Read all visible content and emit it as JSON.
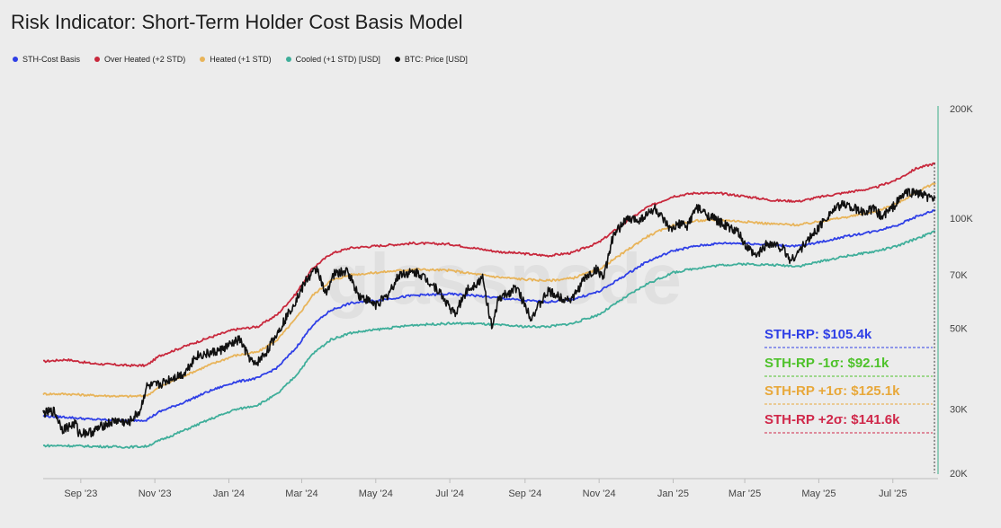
{
  "title": "Risk Indicator: Short-Term Holder Cost Basis Model",
  "watermark": "glassnode",
  "legend": [
    {
      "label": "STH-Cost Basis",
      "color": "#2f3fe6"
    },
    {
      "label": "Over Heated (+2 STD)",
      "color": "#c8283c"
    },
    {
      "label": "Heated (+1 STD)",
      "color": "#e8b45a"
    },
    {
      "label": "Cooled (+1 STD) [USD]",
      "color": "#3fae9a"
    },
    {
      "label": "BTC: Price [USD]",
      "color": "#111111"
    }
  ],
  "annotations": [
    {
      "text": "STH-RP: $105.4k",
      "color": "#2f3fe6"
    },
    {
      "text": "STH-RP -1σ: $92.1k",
      "color": "#4ec22a"
    },
    {
      "text": "STH-RP +1σ: $125.1k",
      "color": "#e8a83a"
    },
    {
      "text": "STH-RP +2σ: $141.6k",
      "color": "#d0284a"
    }
  ],
  "chart_data": {
    "type": "line",
    "title": "Risk Indicator: Short-Term Holder Cost Basis Model",
    "y_scale": "log",
    "ylim": [
      20000,
      200000
    ],
    "y_ticks": [
      {
        "value": 20000,
        "label": "20K"
      },
      {
        "value": 30000,
        "label": "30K"
      },
      {
        "value": 50000,
        "label": "50K"
      },
      {
        "value": 70000,
        "label": "70K"
      },
      {
        "value": 100000,
        "label": "100K"
      },
      {
        "value": 200000,
        "label": "200K"
      }
    ],
    "xlim": [
      "2023-08-01",
      "2025-08-05"
    ],
    "x_ticks": [
      {
        "date": "2023-09-01",
        "label": "Sep '23"
      },
      {
        "date": "2023-11-01",
        "label": "Nov '23"
      },
      {
        "date": "2024-01-01",
        "label": "Jan '24"
      },
      {
        "date": "2024-03-01",
        "label": "Mar '24"
      },
      {
        "date": "2024-05-01",
        "label": "May '24"
      },
      {
        "date": "2024-07-01",
        "label": "Jul '24"
      },
      {
        "date": "2024-09-01",
        "label": "Sep '24"
      },
      {
        "date": "2024-11-01",
        "label": "Nov '24"
      },
      {
        "date": "2025-01-01",
        "label": "Jan '25"
      },
      {
        "date": "2025-03-01",
        "label": "Mar '25"
      },
      {
        "date": "2025-05-01",
        "label": "May '25"
      },
      {
        "date": "2025-07-01",
        "label": "Jul '25"
      }
    ],
    "grid": false,
    "legend_position": "top-left",
    "series": [
      {
        "name": "Over Heated (+2 STD)",
        "color": "#c8283c",
        "points": [
          [
            "2023-08-01",
            40500
          ],
          [
            "2023-08-20",
            41000
          ],
          [
            "2023-09-10",
            40000
          ],
          [
            "2023-10-10",
            39500
          ],
          [
            "2023-10-25",
            39500
          ],
          [
            "2023-11-05",
            42000
          ],
          [
            "2023-11-25",
            44500
          ],
          [
            "2023-12-15",
            47000
          ],
          [
            "2024-01-05",
            49500
          ],
          [
            "2024-01-25",
            50500
          ],
          [
            "2024-02-10",
            54500
          ],
          [
            "2024-02-25",
            62000
          ],
          [
            "2024-03-10",
            73000
          ],
          [
            "2024-03-25",
            80000
          ],
          [
            "2024-04-10",
            83000
          ],
          [
            "2024-05-01",
            84000
          ],
          [
            "2024-06-01",
            85500
          ],
          [
            "2024-07-01",
            85000
          ],
          [
            "2024-07-20",
            83000
          ],
          [
            "2024-08-10",
            81000
          ],
          [
            "2024-09-01",
            80000
          ],
          [
            "2024-09-20",
            79000
          ],
          [
            "2024-10-10",
            80500
          ],
          [
            "2024-11-01",
            86000
          ],
          [
            "2024-11-20",
            96000
          ],
          [
            "2024-12-10",
            107000
          ],
          [
            "2025-01-01",
            115000
          ],
          [
            "2025-01-20",
            117500
          ],
          [
            "2025-02-10",
            117000
          ],
          [
            "2025-03-01",
            115000
          ],
          [
            "2025-03-25",
            112000
          ],
          [
            "2025-04-15",
            111500
          ],
          [
            "2025-05-05",
            115000
          ],
          [
            "2025-05-25",
            118000
          ],
          [
            "2025-06-15",
            121000
          ],
          [
            "2025-07-05",
            128000
          ],
          [
            "2025-07-20",
            137000
          ],
          [
            "2025-08-05",
            141600
          ]
        ]
      },
      {
        "name": "Heated (+1 STD)",
        "color": "#e8b45a",
        "points": [
          [
            "2023-08-01",
            33000
          ],
          [
            "2023-08-20",
            33000
          ],
          [
            "2023-09-10",
            32700
          ],
          [
            "2023-10-10",
            32500
          ],
          [
            "2023-10-25",
            32600
          ],
          [
            "2023-11-05",
            34500
          ],
          [
            "2023-11-25",
            37000
          ],
          [
            "2023-12-15",
            39500
          ],
          [
            "2024-01-05",
            42000
          ],
          [
            "2024-01-25",
            43000
          ],
          [
            "2024-02-10",
            46500
          ],
          [
            "2024-02-25",
            53000
          ],
          [
            "2024-03-10",
            61500
          ],
          [
            "2024-03-25",
            67500
          ],
          [
            "2024-04-10",
            70000
          ],
          [
            "2024-05-01",
            71000
          ],
          [
            "2024-06-01",
            72500
          ],
          [
            "2024-07-01",
            72000
          ],
          [
            "2024-07-20",
            70500
          ],
          [
            "2024-08-10",
            69000
          ],
          [
            "2024-09-01",
            68000
          ],
          [
            "2024-09-20",
            67500
          ],
          [
            "2024-10-10",
            68500
          ],
          [
            "2024-11-01",
            72500
          ],
          [
            "2024-11-20",
            80000
          ],
          [
            "2024-12-10",
            89000
          ],
          [
            "2025-01-01",
            96000
          ],
          [
            "2025-01-20",
            98500
          ],
          [
            "2025-02-10",
            99000
          ],
          [
            "2025-03-01",
            98000
          ],
          [
            "2025-03-25",
            96500
          ],
          [
            "2025-04-15",
            96000
          ],
          [
            "2025-05-05",
            98500
          ],
          [
            "2025-05-25",
            101000
          ],
          [
            "2025-06-15",
            104000
          ],
          [
            "2025-07-05",
            110000
          ],
          [
            "2025-07-20",
            118000
          ],
          [
            "2025-08-05",
            125100
          ]
        ]
      },
      {
        "name": "STH-Cost Basis",
        "color": "#2f3fe6",
        "points": [
          [
            "2023-08-01",
            28700
          ],
          [
            "2023-08-20",
            28500
          ],
          [
            "2023-09-10",
            28100
          ],
          [
            "2023-10-10",
            27900
          ],
          [
            "2023-10-25",
            28000
          ],
          [
            "2023-11-05",
            29500
          ],
          [
            "2023-11-25",
            31300
          ],
          [
            "2023-12-15",
            33500
          ],
          [
            "2024-01-05",
            35500
          ],
          [
            "2024-01-25",
            36500
          ],
          [
            "2024-02-10",
            39000
          ],
          [
            "2024-02-25",
            44000
          ],
          [
            "2024-03-10",
            51000
          ],
          [
            "2024-03-25",
            56000
          ],
          [
            "2024-04-10",
            58500
          ],
          [
            "2024-05-01",
            59500
          ],
          [
            "2024-06-01",
            61500
          ],
          [
            "2024-07-01",
            62000
          ],
          [
            "2024-07-20",
            61500
          ],
          [
            "2024-08-10",
            60500
          ],
          [
            "2024-09-01",
            59500
          ],
          [
            "2024-09-20",
            59000
          ],
          [
            "2024-10-10",
            60000
          ],
          [
            "2024-11-01",
            63000
          ],
          [
            "2024-11-20",
            69000
          ],
          [
            "2024-12-10",
            76000
          ],
          [
            "2025-01-01",
            81500
          ],
          [
            "2025-01-20",
            84000
          ],
          [
            "2025-02-10",
            85500
          ],
          [
            "2025-03-01",
            85500
          ],
          [
            "2025-03-25",
            84500
          ],
          [
            "2025-04-15",
            84000
          ],
          [
            "2025-05-05",
            86500
          ],
          [
            "2025-05-25",
            89500
          ],
          [
            "2025-06-15",
            92000
          ],
          [
            "2025-07-05",
            96000
          ],
          [
            "2025-07-20",
            101000
          ],
          [
            "2025-08-05",
            105400
          ]
        ]
      },
      {
        "name": "Cooled (+1 STD) [USD]",
        "color": "#3fae9a",
        "points": [
          [
            "2023-08-01",
            23800
          ],
          [
            "2023-08-20",
            23800
          ],
          [
            "2023-09-10",
            23700
          ],
          [
            "2023-10-10",
            23600
          ],
          [
            "2023-10-25",
            23700
          ],
          [
            "2023-11-05",
            24600
          ],
          [
            "2023-11-25",
            26200
          ],
          [
            "2023-12-15",
            28000
          ],
          [
            "2024-01-05",
            29800
          ],
          [
            "2024-01-25",
            30800
          ],
          [
            "2024-02-10",
            33000
          ],
          [
            "2024-02-25",
            37000
          ],
          [
            "2024-03-10",
            42500
          ],
          [
            "2024-03-25",
            46500
          ],
          [
            "2024-04-10",
            48500
          ],
          [
            "2024-05-01",
            49500
          ],
          [
            "2024-06-01",
            51000
          ],
          [
            "2024-07-01",
            51500
          ],
          [
            "2024-07-20",
            51500
          ],
          [
            "2024-08-10",
            51000
          ],
          [
            "2024-09-01",
            50500
          ],
          [
            "2024-09-20",
            50500
          ],
          [
            "2024-10-10",
            51500
          ],
          [
            "2024-11-01",
            54500
          ],
          [
            "2024-11-20",
            60000
          ],
          [
            "2024-12-10",
            66000
          ],
          [
            "2025-01-01",
            71000
          ],
          [
            "2025-01-20",
            73000
          ],
          [
            "2025-02-10",
            74500
          ],
          [
            "2025-03-01",
            75000
          ],
          [
            "2025-03-25",
            74500
          ],
          [
            "2025-04-15",
            74000
          ],
          [
            "2025-05-05",
            76500
          ],
          [
            "2025-05-25",
            79000
          ],
          [
            "2025-06-15",
            81000
          ],
          [
            "2025-07-05",
            84000
          ],
          [
            "2025-07-20",
            88000
          ],
          [
            "2025-08-05",
            92100
          ]
        ]
      },
      {
        "name": "BTC: Price [USD]",
        "color": "#111111",
        "points": [
          [
            "2023-08-01",
            29200
          ],
          [
            "2023-08-10",
            29600
          ],
          [
            "2023-08-17",
            26400
          ],
          [
            "2023-08-28",
            27400
          ],
          [
            "2023-08-30",
            25800
          ],
          [
            "2023-09-10",
            25900
          ],
          [
            "2023-09-20",
            27100
          ],
          [
            "2023-10-01",
            27900
          ],
          [
            "2023-10-10",
            27400
          ],
          [
            "2023-10-20",
            29700
          ],
          [
            "2023-10-25",
            34500
          ],
          [
            "2023-11-05",
            35000
          ],
          [
            "2023-11-15",
            36500
          ],
          [
            "2023-11-25",
            37500
          ],
          [
            "2023-12-05",
            42000
          ],
          [
            "2023-12-15",
            42500
          ],
          [
            "2023-12-25",
            43500
          ],
          [
            "2024-01-10",
            46500
          ],
          [
            "2024-01-15",
            43000
          ],
          [
            "2024-01-22",
            39500
          ],
          [
            "2024-02-01",
            43000
          ],
          [
            "2024-02-15",
            52000
          ],
          [
            "2024-02-28",
            62000
          ],
          [
            "2024-03-05",
            68000
          ],
          [
            "2024-03-14",
            73000
          ],
          [
            "2024-03-20",
            62000
          ],
          [
            "2024-03-28",
            70500
          ],
          [
            "2024-04-08",
            71500
          ],
          [
            "2024-04-17",
            61500
          ],
          [
            "2024-05-01",
            58000
          ],
          [
            "2024-05-10",
            61000
          ],
          [
            "2024-05-21",
            70500
          ],
          [
            "2024-06-05",
            71000
          ],
          [
            "2024-06-20",
            64500
          ],
          [
            "2024-07-05",
            54500
          ],
          [
            "2024-07-15",
            63500
          ],
          [
            "2024-07-28",
            68500
          ],
          [
            "2024-08-05",
            49500
          ],
          [
            "2024-08-10",
            60000
          ],
          [
            "2024-08-25",
            64500
          ],
          [
            "2024-09-06",
            53500
          ],
          [
            "2024-09-20",
            63000
          ],
          [
            "2024-10-01",
            60500
          ],
          [
            "2024-10-10",
            60000
          ],
          [
            "2024-10-20",
            68500
          ],
          [
            "2024-10-30",
            72500
          ],
          [
            "2024-11-05",
            69000
          ],
          [
            "2024-11-12",
            88000
          ],
          [
            "2024-11-22",
            99000
          ],
          [
            "2024-12-05",
            99500
          ],
          [
            "2024-12-17",
            106500
          ],
          [
            "2024-12-30",
            92500
          ],
          [
            "2025-01-07",
            97000
          ],
          [
            "2025-01-12",
            94500
          ],
          [
            "2025-01-20",
            107000
          ],
          [
            "2025-02-01",
            101000
          ],
          [
            "2025-02-10",
            97000
          ],
          [
            "2025-02-24",
            91000
          ],
          [
            "2025-03-01",
            84500
          ],
          [
            "2025-03-10",
            78500
          ],
          [
            "2025-03-20",
            86000
          ],
          [
            "2025-04-01",
            83000
          ],
          [
            "2025-04-08",
            76500
          ],
          [
            "2025-04-20",
            85500
          ],
          [
            "2025-05-01",
            94500
          ],
          [
            "2025-05-10",
            103500
          ],
          [
            "2025-05-22",
            110000
          ],
          [
            "2025-06-05",
            104000
          ],
          [
            "2025-06-15",
            106000
          ],
          [
            "2025-06-22",
            101000
          ],
          [
            "2025-07-01",
            107500
          ],
          [
            "2025-07-11",
            117500
          ],
          [
            "2025-07-20",
            118000
          ],
          [
            "2025-08-01",
            113500
          ],
          [
            "2025-08-05",
            114500
          ]
        ]
      }
    ]
  }
}
